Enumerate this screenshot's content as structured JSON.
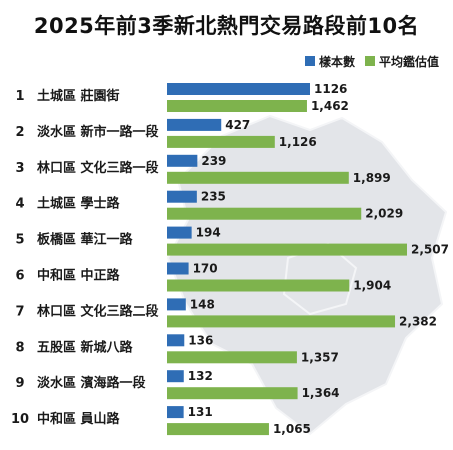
{
  "title": "2025年前3季新北熱門交易路段前10名",
  "legend": {
    "series1": "樣本數",
    "series2": "平均鑑估值"
  },
  "colors": {
    "series1": "#2f6db5",
    "series2": "#7eb34d",
    "map": "#e3e5e9",
    "mapEdge": "#f4f5f7"
  },
  "chart_data": {
    "type": "bar",
    "orientation": "horizontal",
    "title": "2025年前3季新北熱門交易路段前10名",
    "ranks": [
      "1",
      "2",
      "3",
      "4",
      "5",
      "6",
      "7",
      "8",
      "9",
      "10"
    ],
    "categories": [
      "土城區 莊園街",
      "淡水區 新市一路一段",
      "林口區 文化三路一段",
      "土城區 學士路",
      "板橋區 華江一路",
      "中和區 中正路",
      "林口區 文化三路二段",
      "五股區 新城八路",
      "淡水區 濱海路一段",
      "中和區 員山路"
    ],
    "series": [
      {
        "name": "樣本數",
        "values": [
          1126,
          427,
          239,
          235,
          194,
          170,
          148,
          136,
          132,
          131
        ],
        "labels": [
          "1126",
          "427",
          "239",
          "235",
          "194",
          "170",
          "148",
          "136",
          "132",
          "131"
        ]
      },
      {
        "name": "平均鑑估值",
        "values": [
          1462,
          1126,
          1899,
          2029,
          2507,
          1904,
          2382,
          1357,
          1364,
          1065
        ],
        "labels": [
          "1,462",
          "1,126",
          "1,899",
          "2,029",
          "2,507",
          "1,904",
          "2,382",
          "1,357",
          "1,364",
          "1,065"
        ]
      }
    ],
    "legend_position": "top-right",
    "grid": false
  }
}
